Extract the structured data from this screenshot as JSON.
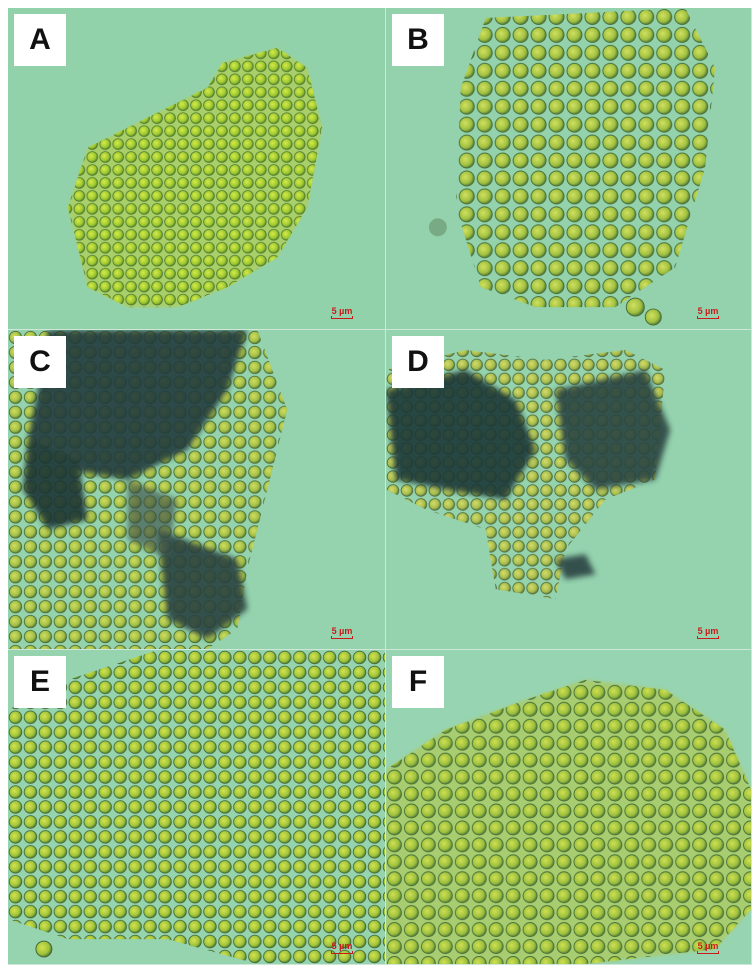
{
  "figure": {
    "background_color": "#8fd0a8",
    "cell_color": "#a6cf3a",
    "aggregate_color": "#1f3a3a",
    "panels": [
      {
        "label": "A",
        "scale_text": "5 µm",
        "has_dark_aggregates": false,
        "texture": "dense-yellow-green"
      },
      {
        "label": "B",
        "scale_text": "5 µm",
        "has_dark_aggregates": false,
        "texture": "large-pale-cells"
      },
      {
        "label": "C",
        "scale_text": "5 µm",
        "has_dark_aggregates": true,
        "texture": "cells-with-dark-flocs"
      },
      {
        "label": "D",
        "scale_text": "5 µm",
        "has_dark_aggregates": true,
        "texture": "cells-with-dark-flocs"
      },
      {
        "label": "E",
        "scale_text": "5 µm",
        "has_dark_aggregates": false,
        "texture": "spread-cells"
      },
      {
        "label": "F",
        "scale_text": "5 µm",
        "has_dark_aggregates": false,
        "texture": "spread-cells"
      }
    ]
  }
}
